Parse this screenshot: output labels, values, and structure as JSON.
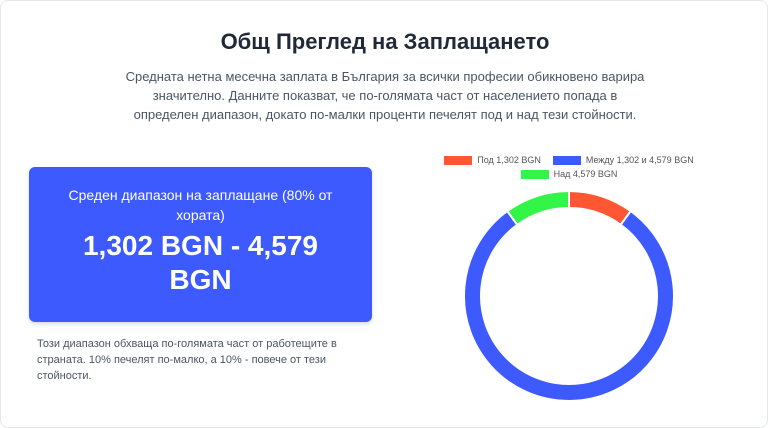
{
  "header": {
    "title": "Общ Преглед на Заплащането",
    "description": "Средната нетна месечна заплата в България за всички професии обикновено варира значително. Данните показват, че по-голямата част от населението попада в определен диапазон, докато по-малки проценти печелят под и над тези стойности."
  },
  "range_card": {
    "label": "Среден диапазон на заплащане (80% от хората)",
    "range": "1,302 BGN - 4,579 BGN"
  },
  "note": "Този диапазон обхваща по-голямата част от работещите в страната. 10% печелят по-малко, а 10% - повече от тези стойности.",
  "chart_data": {
    "type": "doughnut",
    "categories": [
      "Под 1,302 BGN",
      "Между 1,302 и 4,579 BGN",
      "Над 4,579 BGN"
    ],
    "values": [
      10,
      80,
      10
    ],
    "colors": [
      "#ff5733",
      "#3d5afe",
      "#33f548"
    ]
  }
}
